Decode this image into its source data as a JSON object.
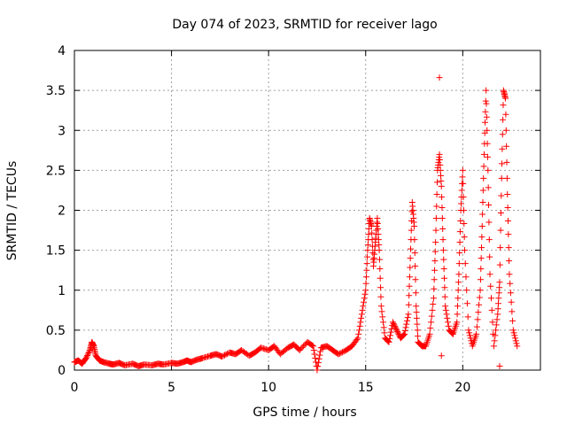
{
  "chart_data": {
    "type": "scatter",
    "title": "Day 074 of 2023, SRMTID for receiver lago",
    "xlabel": "GPS time / hours",
    "ylabel": "SRMTID / TECUs",
    "xlim": [
      0,
      24
    ],
    "ylim": [
      0,
      4
    ],
    "xticks": [
      0,
      5,
      10,
      15,
      20
    ],
    "xtick_labels": [
      "0",
      "5",
      "10",
      "15",
      "20"
    ],
    "yticks": [
      0,
      0.5,
      1,
      1.5,
      2,
      2.5,
      3,
      3.5,
      4
    ],
    "ytick_labels": [
      "0",
      "0.5",
      "1",
      "1.5",
      "2",
      "2.5",
      "3",
      "3.5",
      "4"
    ],
    "grid": true,
    "marker": "+",
    "color": "#ff0000",
    "series": [
      {
        "name": "SRMTID",
        "x": [
          0.0,
          0.2,
          0.4,
          0.6,
          0.8,
          0.9,
          1.0,
          1.1,
          1.3,
          1.5,
          1.8,
          2.0,
          2.3,
          2.6,
          3.0,
          3.3,
          3.6,
          4.0,
          4.3,
          4.6,
          5.0,
          5.3,
          5.6,
          5.8,
          6.0,
          6.3,
          6.6,
          7.0,
          7.3,
          7.6,
          8.0,
          8.3,
          8.6,
          9.0,
          9.3,
          9.6,
          10.0,
          10.3,
          10.6,
          11.0,
          11.3,
          11.6,
          12.0,
          12.3,
          12.5,
          12.7,
          13.0,
          13.3,
          13.6,
          14.0,
          14.3,
          14.6,
          14.8,
          15.0,
          15.1,
          15.2,
          15.3,
          15.4,
          15.5,
          15.6,
          15.7,
          15.8,
          16.0,
          16.2,
          16.4,
          16.6,
          16.8,
          17.0,
          17.2,
          17.3,
          17.4,
          17.5,
          17.6,
          17.7,
          17.9,
          18.1,
          18.3,
          18.5,
          18.6,
          18.7,
          18.8,
          18.9,
          19.0,
          19.1,
          19.3,
          19.5,
          19.7,
          19.8,
          19.9,
          20.0,
          20.1,
          20.3,
          20.5,
          20.7,
          20.9,
          21.0,
          21.1,
          21.2,
          21.3,
          21.4,
          21.6,
          21.8,
          21.9,
          22.0,
          22.1,
          22.2,
          22.3,
          22.4,
          22.6,
          22.8
        ],
        "y": [
          0.1,
          0.12,
          0.08,
          0.15,
          0.25,
          0.35,
          0.3,
          0.18,
          0.12,
          0.1,
          0.08,
          0.07,
          0.09,
          0.06,
          0.08,
          0.05,
          0.07,
          0.06,
          0.08,
          0.07,
          0.09,
          0.08,
          0.1,
          0.12,
          0.1,
          0.13,
          0.15,
          0.18,
          0.2,
          0.17,
          0.22,
          0.2,
          0.25,
          0.18,
          0.22,
          0.28,
          0.25,
          0.3,
          0.2,
          0.28,
          0.32,
          0.25,
          0.35,
          0.3,
          0.0,
          0.28,
          0.3,
          0.25,
          0.2,
          0.25,
          0.3,
          0.4,
          0.7,
          1.0,
          1.5,
          1.9,
          1.8,
          1.3,
          1.6,
          1.9,
          1.5,
          0.8,
          0.4,
          0.35,
          0.6,
          0.5,
          0.4,
          0.45,
          0.7,
          1.4,
          2.1,
          1.8,
          0.8,
          0.35,
          0.3,
          0.3,
          0.45,
          0.9,
          1.6,
          2.5,
          2.7,
          2.3,
          1.5,
          0.8,
          0.5,
          0.45,
          0.6,
          1.2,
          2.0,
          2.5,
          1.5,
          0.5,
          0.3,
          0.45,
          1.0,
          1.8,
          2.7,
          3.5,
          2.5,
          1.2,
          0.3,
          0.7,
          1.1,
          2.4,
          3.5,
          3.4,
          2.2,
          1.2,
          0.5,
          0.3
        ],
        "outliers": [
          {
            "x": 18.8,
            "y": 3.66
          },
          {
            "x": 21.9,
            "y": 0.05
          },
          {
            "x": 18.9,
            "y": 0.18
          }
        ]
      }
    ]
  }
}
